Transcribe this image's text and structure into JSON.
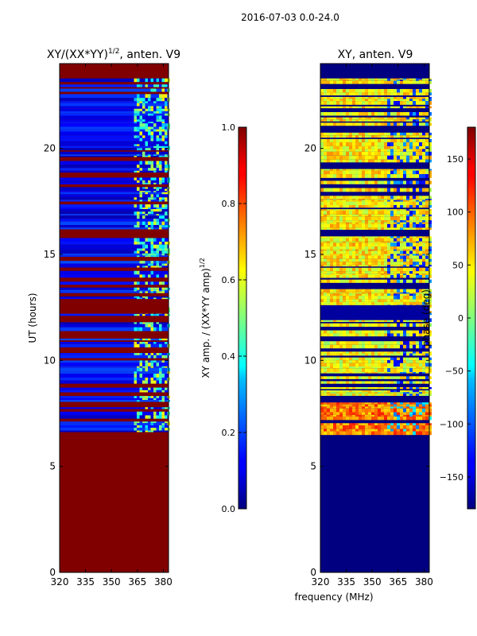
{
  "suptitle": "2016-07-03 0.0-24.0",
  "xlabel_shared": "frequency (MHz)",
  "colors": {
    "jet_low": "#00007f",
    "jet_high": "#7f0000"
  },
  "chart_data": [
    {
      "type": "heatmap",
      "title": "XY/(XX*YY)^{1/2}, anten. V9",
      "title_main": "XY/(XX*YY)",
      "title_sup": "1/2",
      "title_tail": ", anten. V9",
      "ylabel": "UT (hours)",
      "xlim": [
        320,
        383
      ],
      "ylim": [
        0,
        24
      ],
      "xticks": [
        320,
        335,
        350,
        365,
        380
      ],
      "yticks": [
        0,
        5,
        10,
        15,
        20
      ],
      "data_start_hour": 6.6,
      "data_end_hour": 23.3,
      "rfi_band_mhz": [
        363,
        383
      ],
      "flagged_value": 1.0,
      "typical_value": 0.1,
      "colorbar": {
        "label": "XY amp. / (XX*YY amp)^{1/2}",
        "label_main": "XY amp. / (XX*YY amp)",
        "label_sup": "1/2",
        "range": [
          0.0,
          1.0
        ],
        "ticks": [
          "0.0",
          "0.2",
          "0.4",
          "0.6",
          "0.8",
          "1.0"
        ]
      }
    },
    {
      "type": "heatmap",
      "title": "XY, anten. V9",
      "ylabel": "",
      "xlim": [
        320,
        383
      ],
      "ylim": [
        0,
        24
      ],
      "xticks": [
        320,
        335,
        350,
        365,
        380
      ],
      "yticks": [
        0,
        5,
        10,
        15,
        20
      ],
      "data_start_hour": 6.6,
      "data_end_hour": 23.3,
      "flagged_value": -180,
      "typical_value": 45,
      "colorbar": {
        "label": "phase (deg)",
        "range": [
          -180,
          180
        ],
        "ticks": [
          "−150",
          "−100",
          "−50",
          "0",
          "50",
          "100",
          "150"
        ],
        "tick_values": [
          -150,
          -100,
          -50,
          0,
          50,
          100,
          150
        ]
      }
    }
  ]
}
